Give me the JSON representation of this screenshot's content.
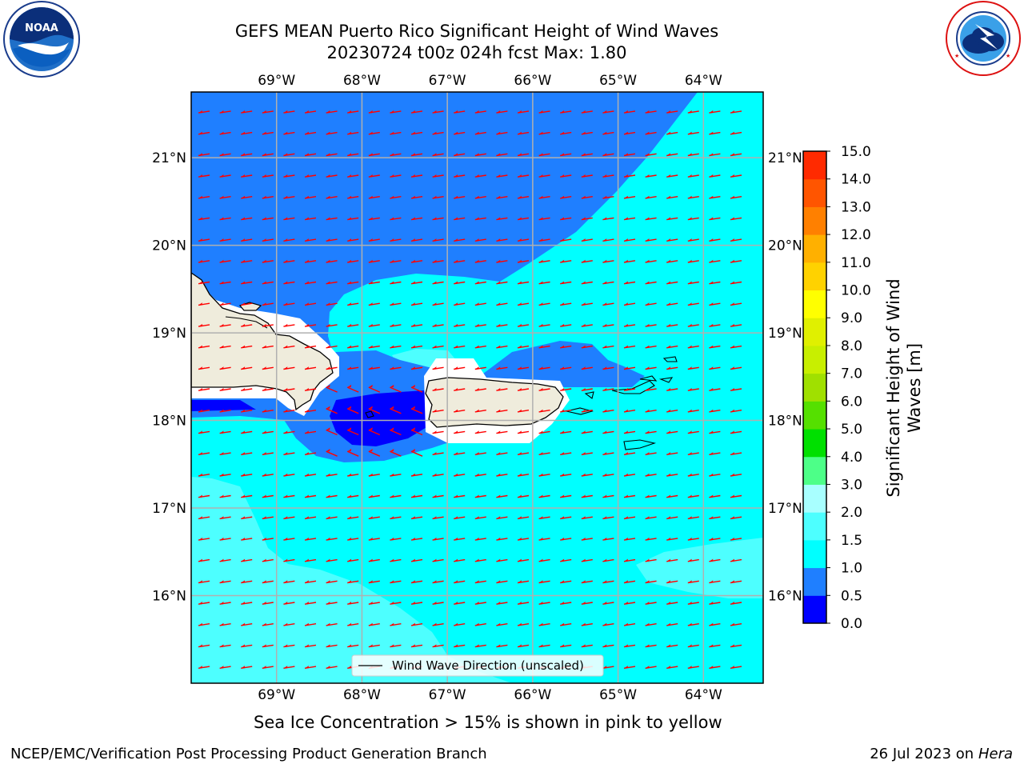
{
  "header": {
    "title_line1": "GEFS MEAN Puerto Rico Significant Height of Wind Waves",
    "title_line2": "20230724 t00z 024h fcst   Max: 1.80"
  },
  "logos": {
    "left": {
      "name": "noaa-logo",
      "text": "NOAA",
      "ring_text": "NATIONAL OCEANIC AND ATMOSPHERIC ADMINISTRATION · U.S. DEPARTMENT OF COMMERCE"
    },
    "right": {
      "name": "nws-logo",
      "ring_text": "NATIONAL WEATHER SERVICE"
    }
  },
  "map": {
    "lon_ticks": [
      "69°W",
      "68°W",
      "67°W",
      "66°W",
      "65°W",
      "64°W"
    ],
    "lat_ticks": [
      "21°N",
      "20°N",
      "19°N",
      "18°N",
      "17°N",
      "16°N"
    ],
    "lon_range": [
      -70.0,
      -63.3
    ],
    "lat_range": [
      15.0,
      21.75
    ],
    "legend_label": "Wind Wave Direction (unscaled)",
    "arrow_color": "#ff0000",
    "land_color": "#efecdc"
  },
  "colorbar": {
    "label": "Significant Height of Wind Waves [m]",
    "tick_labels": [
      "0.0",
      "0.5",
      "1.0",
      "1.5",
      "2.0",
      "3.0",
      "4.0",
      "5.0",
      "6.0",
      "7.0",
      "8.0",
      "9.0",
      "10.0",
      "11.0",
      "12.0",
      "13.0",
      "14.0",
      "15.0"
    ],
    "colors": [
      "#0000ff",
      "#1f7fff",
      "#00ffff",
      "#4dffff",
      "#a8ffff",
      "#4dff88",
      "#00e000",
      "#55e000",
      "#a0e000",
      "#c8ef00",
      "#e0f000",
      "#ffff00",
      "#ffd200",
      "#ffb000",
      "#ff8000",
      "#ff5500",
      "#ff2a00",
      "#ff0000"
    ]
  },
  "notes": {
    "sea_ice": "Sea Ice Concentration > 15% is shown in pink to yellow"
  },
  "footer": {
    "left": "NCEP/EMC/Verification Post Processing Product Generation Branch",
    "date": "26 Jul 2023 on ",
    "machine": "Hera"
  }
}
